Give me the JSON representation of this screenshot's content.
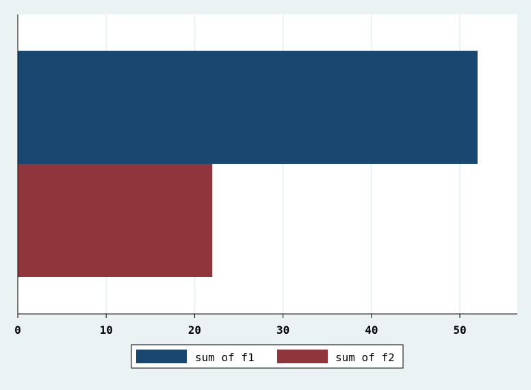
{
  "chart_data": {
    "type": "bar",
    "orientation": "horizontal",
    "series": [
      {
        "name": "sum of f1",
        "values": [
          52
        ]
      },
      {
        "name": "sum of f2",
        "values": [
          22
        ]
      }
    ],
    "xlim": [
      0,
      55
    ],
    "xticks": [
      0,
      10,
      20,
      30,
      40,
      50
    ],
    "title": "",
    "xlabel": "",
    "ylabel": "",
    "grid": true,
    "legend_position": "bottom",
    "colors": {
      "sum of f1": "#1a476f",
      "sum of f2": "#90353b",
      "background": "#eaf2f3",
      "plot_background": "#ffffff",
      "grid": "#eaf2f3",
      "axis": "#000000"
    }
  }
}
